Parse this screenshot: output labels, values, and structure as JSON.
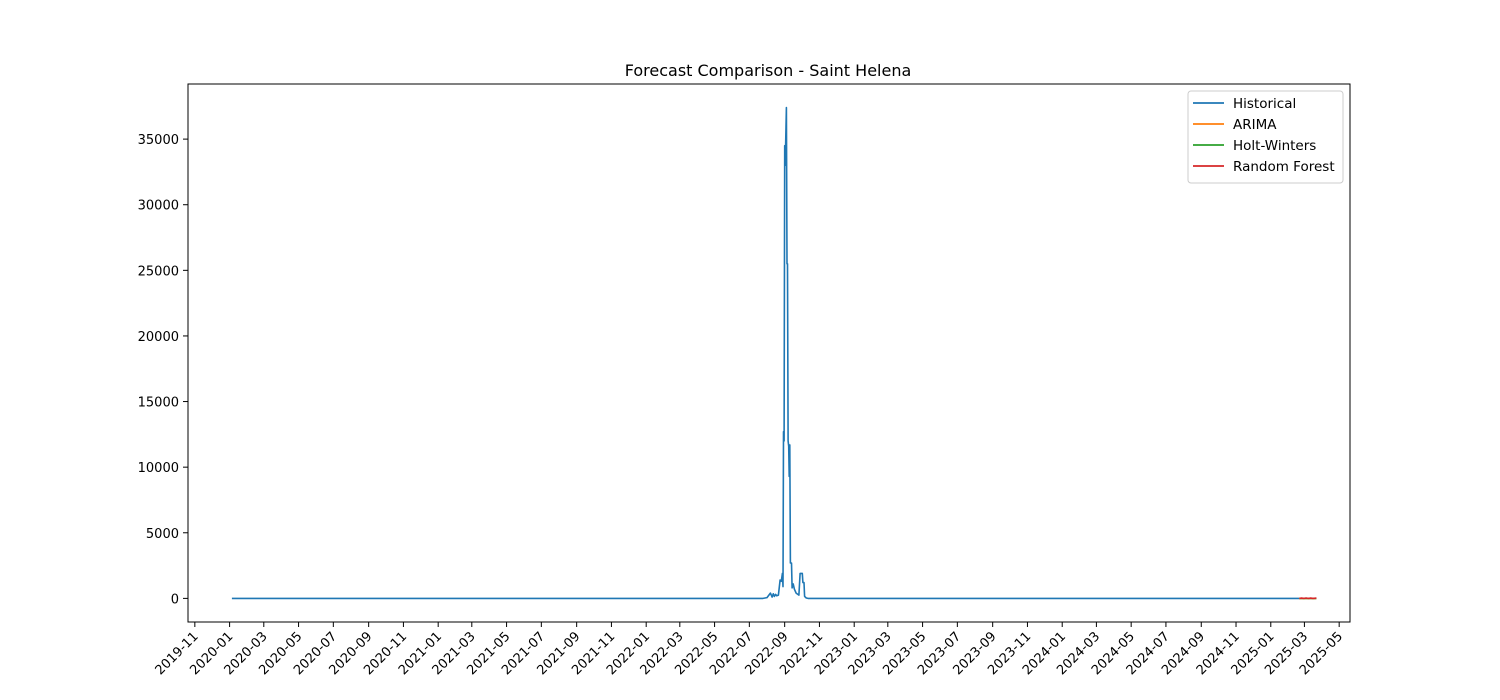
{
  "chart_data": {
    "type": "line",
    "title": "Forecast Comparison - Saint Helena",
    "xlabel": "",
    "ylabel": "",
    "x_range": [
      "2019-10-20",
      "2025-05-20"
    ],
    "ylim": [
      -1800,
      39200
    ],
    "x_ticks": [
      "2019-11",
      "2020-01",
      "2020-03",
      "2020-05",
      "2020-07",
      "2020-09",
      "2020-11",
      "2021-01",
      "2021-03",
      "2021-05",
      "2021-07",
      "2021-09",
      "2021-11",
      "2022-01",
      "2022-03",
      "2022-05",
      "2022-07",
      "2022-09",
      "2022-11",
      "2023-01",
      "2023-03",
      "2023-05",
      "2023-07",
      "2023-09",
      "2023-11",
      "2024-01",
      "2024-03",
      "2024-05",
      "2024-07",
      "2024-09",
      "2024-11",
      "2025-01",
      "2025-03",
      "2025-05"
    ],
    "y_ticks": [
      0,
      5000,
      10000,
      15000,
      20000,
      25000,
      30000,
      35000
    ],
    "grid": false,
    "legend_position": "top-right",
    "series": [
      {
        "name": "Historical",
        "color": "#1f77b4",
        "points": [
          [
            "2020-01-05",
            0
          ],
          [
            "2022-07-25",
            0
          ],
          [
            "2022-08-01",
            60
          ],
          [
            "2022-08-07",
            400
          ],
          [
            "2022-08-10",
            100
          ],
          [
            "2022-08-12",
            350
          ],
          [
            "2022-08-14",
            150
          ],
          [
            "2022-08-16",
            300
          ],
          [
            "2022-08-18",
            200
          ],
          [
            "2022-08-21",
            250
          ],
          [
            "2022-08-24",
            1400
          ],
          [
            "2022-08-26",
            1300
          ],
          [
            "2022-08-28",
            1900
          ],
          [
            "2022-08-29",
            900
          ],
          [
            "2022-08-30",
            12700
          ],
          [
            "2022-08-31",
            12000
          ],
          [
            "2022-09-01",
            34500
          ],
          [
            "2022-09-02",
            33000
          ],
          [
            "2022-09-04",
            37400
          ],
          [
            "2022-09-05",
            25500
          ],
          [
            "2022-09-06",
            25500
          ],
          [
            "2022-09-07",
            12000
          ],
          [
            "2022-09-08",
            11600
          ],
          [
            "2022-09-09",
            9300
          ],
          [
            "2022-09-10",
            11700
          ],
          [
            "2022-09-11",
            2700
          ],
          [
            "2022-09-13",
            2700
          ],
          [
            "2022-09-14",
            800
          ],
          [
            "2022-09-16",
            1100
          ],
          [
            "2022-09-18",
            700
          ],
          [
            "2022-09-21",
            400
          ],
          [
            "2022-09-26",
            250
          ],
          [
            "2022-09-28",
            1900
          ],
          [
            "2022-10-02",
            1900
          ],
          [
            "2022-10-03",
            1200
          ],
          [
            "2022-10-05",
            1200
          ],
          [
            "2022-10-06",
            150
          ],
          [
            "2022-10-09",
            30
          ],
          [
            "2022-10-12",
            0
          ],
          [
            "2025-02-20",
            0
          ]
        ]
      },
      {
        "name": "ARIMA",
        "color": "#ff7f0e",
        "points": [
          [
            "2025-02-20",
            0
          ],
          [
            "2025-03-22",
            0
          ]
        ]
      },
      {
        "name": "Holt-Winters",
        "color": "#2ca02c",
        "points": [
          [
            "2025-02-20",
            0
          ],
          [
            "2025-03-22",
            0
          ]
        ]
      },
      {
        "name": "Random Forest",
        "color": "#d62728",
        "points": [
          [
            "2025-02-20",
            0
          ],
          [
            "2025-02-24",
            25
          ],
          [
            "2025-02-28",
            0
          ],
          [
            "2025-03-04",
            30
          ],
          [
            "2025-03-08",
            0
          ],
          [
            "2025-03-12",
            25
          ],
          [
            "2025-03-16",
            0
          ],
          [
            "2025-03-22",
            20
          ]
        ]
      }
    ]
  }
}
